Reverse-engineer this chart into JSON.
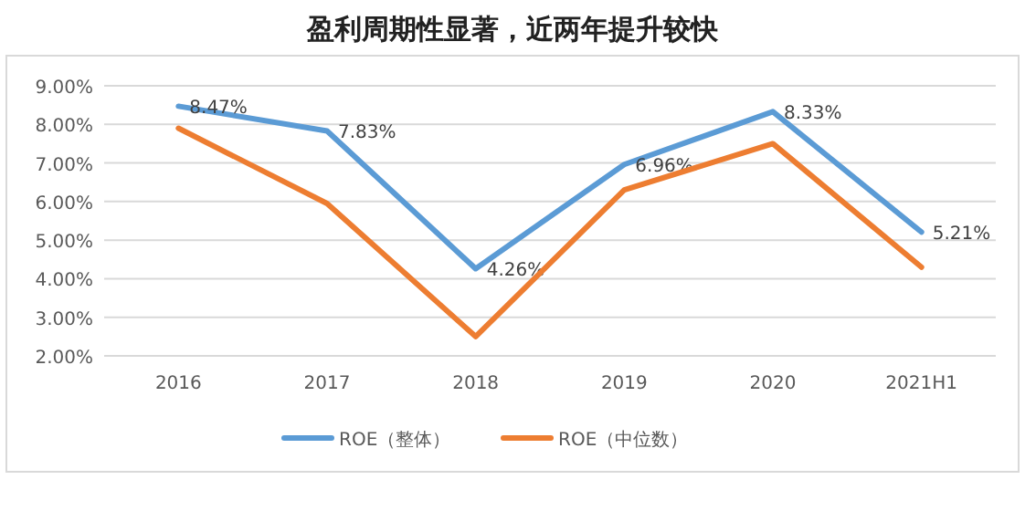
{
  "chart_data": {
    "type": "line",
    "title": "盈利周期性显著，近两年提升较快",
    "categories": [
      "2016",
      "2017",
      "2018",
      "2019",
      "2020",
      "2021H1"
    ],
    "series": [
      {
        "name": "ROE（整体）",
        "color": "#5b9bd5",
        "values": [
          8.47,
          7.83,
          4.26,
          6.96,
          8.33,
          5.21
        ],
        "value_labels": [
          "8.47%",
          "7.83%",
          "4.26%",
          "6.96%",
          "8.33%",
          "5.21%"
        ]
      },
      {
        "name": "ROE（中位数）",
        "color": "#ed7d31",
        "values": [
          7.9,
          5.95,
          2.5,
          6.3,
          7.5,
          4.3
        ]
      }
    ],
    "ylim": [
      2,
      9
    ],
    "yticks": [
      {
        "value": 2,
        "label": "2.00%"
      },
      {
        "value": 3,
        "label": "3.00%"
      },
      {
        "value": 4,
        "label": "4.00%"
      },
      {
        "value": 5,
        "label": "5.00%"
      },
      {
        "value": 6,
        "label": "6.00%"
      },
      {
        "value": 7,
        "label": "7.00%"
      },
      {
        "value": 8,
        "label": "8.00%"
      },
      {
        "value": 9,
        "label": "9.00%"
      }
    ],
    "grid": "y",
    "legend": "bottom",
    "marker": "none",
    "line_style": "solid"
  }
}
